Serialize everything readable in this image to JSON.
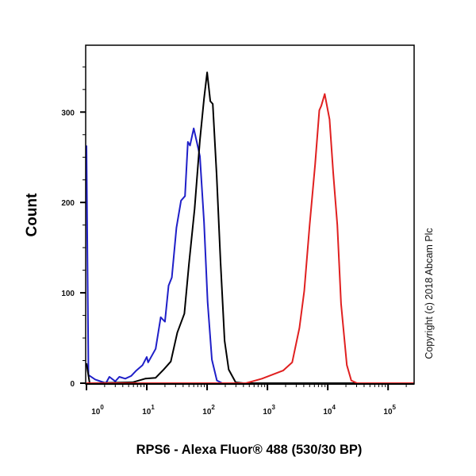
{
  "chart_data": {
    "type": "line",
    "title": "",
    "xlabel": "RPS6 - Alexa Fluor® 488 (530/30 BP)",
    "ylabel": "Count",
    "x_scale": "log",
    "xlim": [
      1,
      270000
    ],
    "ylim": [
      0,
      374
    ],
    "x_ticks": [
      {
        "value": 1,
        "base": "10",
        "exp": "0"
      },
      {
        "value": 10,
        "base": "10",
        "exp": "1"
      },
      {
        "value": 100,
        "base": "10",
        "exp": "2"
      },
      {
        "value": 1000,
        "base": "10",
        "exp": "3"
      },
      {
        "value": 10000,
        "base": "10",
        "exp": "4"
      },
      {
        "value": 100000,
        "base": "10",
        "exp": "5"
      }
    ],
    "y_ticks": [
      0,
      100,
      200,
      300
    ],
    "y_minor_step": 25,
    "grid": false,
    "annotation": "Copyright (c) 2018 Abcam Plc",
    "series": [
      {
        "color": "#1f1fc8",
        "x": [
          1,
          1.08,
          1.4,
          2.1,
          2.4,
          3.0,
          3.5,
          4.4,
          5.5,
          6.7,
          8.5,
          10,
          10.5,
          14,
          17,
          20,
          23,
          26,
          31,
          37,
          43,
          48,
          52,
          60,
          68,
          76,
          89,
          102,
          120,
          145,
          178,
          270000
        ],
        "y": [
          263,
          9,
          4,
          0,
          7,
          2,
          7,
          5,
          8,
          14,
          20,
          29,
          23,
          38,
          73,
          68,
          108,
          117,
          172,
          202,
          207,
          267,
          263,
          282,
          266,
          251,
          178,
          90,
          26,
          3,
          0,
          0
        ]
      },
      {
        "color": "#000000",
        "x": [
          1,
          1.13,
          5.8,
          9.4,
          14,
          19,
          25,
          32,
          42,
          50,
          62,
          76,
          89,
          100,
          113,
          124,
          144,
          167,
          195,
          228,
          297,
          400,
          270000
        ],
        "y": [
          22,
          0,
          1,
          5,
          6,
          15,
          24,
          56,
          77,
          132,
          193,
          269,
          315,
          344,
          312,
          309,
          230,
          134,
          47,
          15,
          1,
          0,
          0
        ]
      },
      {
        "color": "#e02020",
        "x": [
          1,
          440,
          810,
          1820,
          2570,
          3390,
          4070,
          5010,
          6170,
          7240,
          7800,
          8900,
          10700,
          12300,
          14400,
          16600,
          20700,
          24500,
          30600,
          270000
        ],
        "y": [
          0,
          0,
          5,
          14,
          23,
          61,
          102,
          175,
          242,
          302,
          307,
          320,
          292,
          233,
          175,
          88,
          20,
          3,
          0,
          0
        ]
      }
    ]
  }
}
